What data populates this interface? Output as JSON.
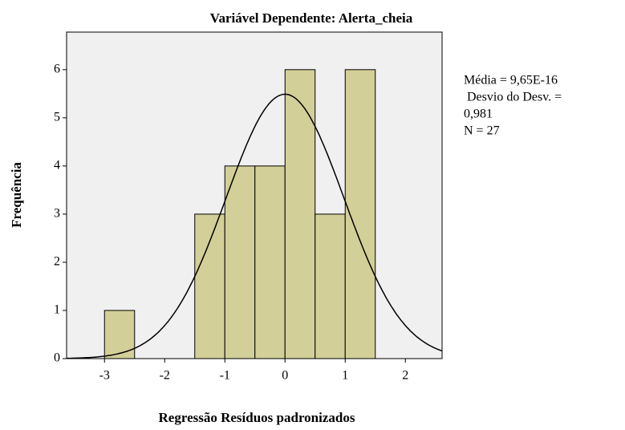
{
  "chart_data": {
    "type": "histogram",
    "title": "Variável Dependente: Alerta_cheia",
    "xlabel": "Regressão Resíduos padronizados",
    "ylabel": "Frequência",
    "bins": [
      -3,
      -2.5,
      -2,
      -1.5,
      -1,
      -0.5,
      0,
      0.5,
      1,
      1.5
    ],
    "values": [
      1,
      0,
      0,
      3,
      4,
      4,
      6,
      3,
      6
    ],
    "color": "#d3cf98",
    "xlim": [
      -3.63,
      2.61
    ],
    "xticks": [
      -3,
      -2,
      -1,
      0,
      1,
      2
    ],
    "ylim": [
      0,
      6.78
    ],
    "yticks": [
      0,
      1,
      2,
      3,
      4,
      5,
      6
    ],
    "annotations": [
      "Média = 9,65E-16",
      " Desvio do Desv. =",
      "0,981",
      "N = 27"
    ],
    "normal_curve": {
      "mean": 9.65e-16,
      "sd": 0.981,
      "n": 27
    }
  }
}
